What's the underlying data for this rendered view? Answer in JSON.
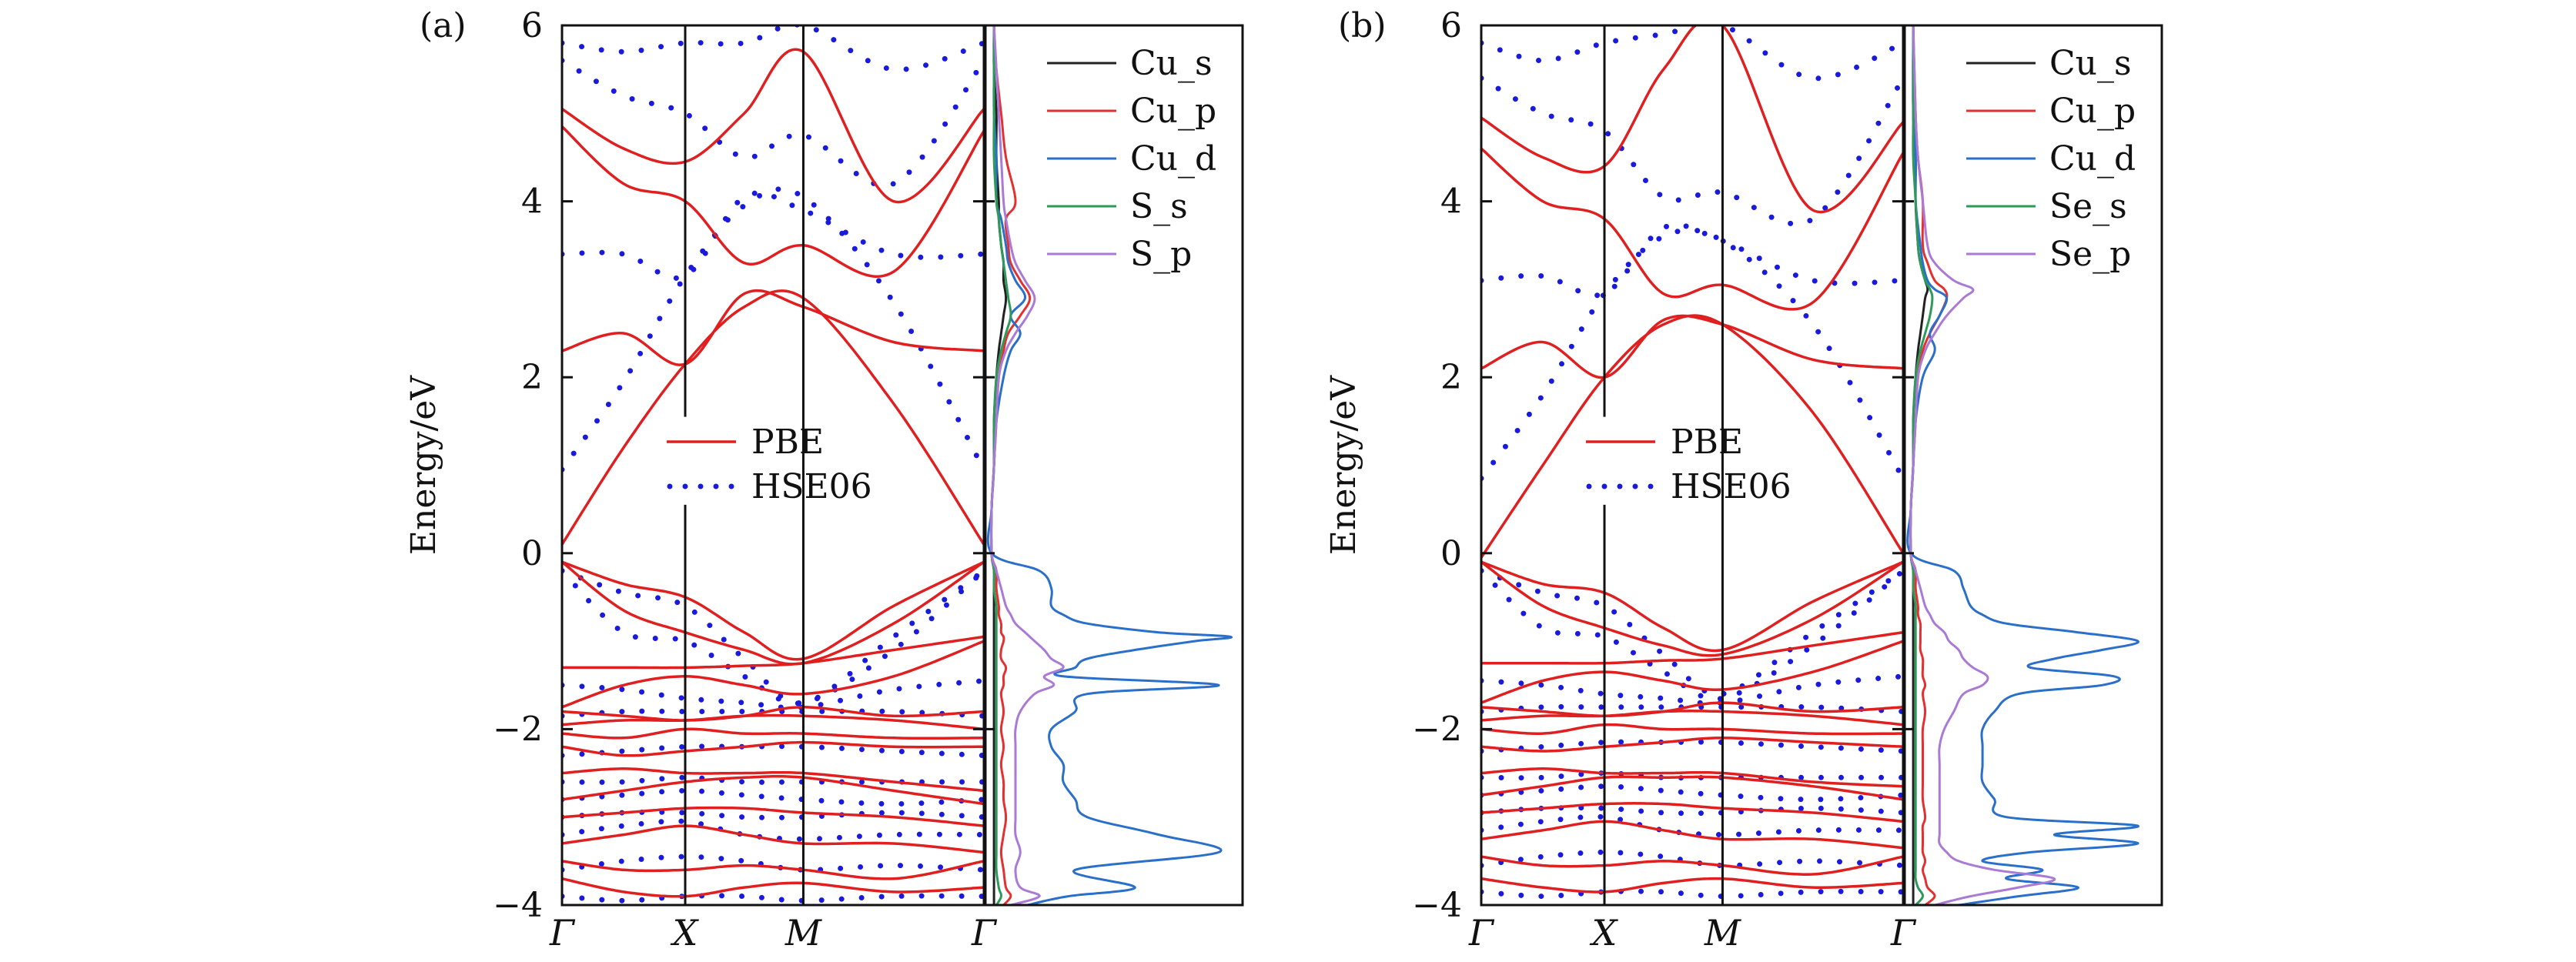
{
  "chart_data": [
    {
      "type": "line",
      "panel_label": "(a)",
      "ylabel": "Energy/eV",
      "ylim": [
        -4,
        6
      ],
      "yticks": [
        -4,
        -2,
        0,
        2,
        4,
        6
      ],
      "ytick_labels": [
        "−4",
        "−2",
        "0",
        "2",
        "4",
        "6"
      ],
      "kpoints": [
        "Γ",
        "X",
        "M",
        "Γ"
      ],
      "band_legend": [
        "PBE",
        "HSE06"
      ],
      "pdos_legend": [
        "Cu_s",
        "Cu_p",
        "Cu_d",
        "S_s",
        "S_p"
      ],
      "colors": {
        "PBE": "#e02020",
        "HSE06": "#1a1adc",
        "Cu_s": "#222222",
        "Cu_p": "#e33030",
        "Cu_d": "#2a6fc9",
        "S_s": "#2e9a5a",
        "S_p": "#a97ad6"
      },
      "pbe_bands": [
        [
          0.1,
          1.2,
          2.15,
          2.8,
          2.9,
          1.7,
          0.1
        ],
        [
          2.3,
          2.5,
          2.15,
          2.95,
          2.8,
          2.4,
          2.3
        ],
        [
          4.85,
          4.2,
          4.0,
          3.3,
          3.5,
          3.2,
          4.8
        ],
        [
          5.05,
          4.6,
          4.45,
          5.0,
          5.7,
          4.0,
          5.05
        ],
        [
          -0.1,
          -0.35,
          -0.5,
          -0.9,
          -1.2,
          -0.6,
          -0.1
        ],
        [
          -0.1,
          -0.65,
          -0.9,
          -1.1,
          -1.25,
          -0.8,
          -0.1
        ],
        [
          -1.3,
          -1.3,
          -1.3,
          -1.28,
          -1.25,
          -1.1,
          -0.95
        ],
        [
          -1.75,
          -1.5,
          -1.4,
          -1.5,
          -1.6,
          -1.4,
          -1.0
        ],
        [
          -1.8,
          -1.85,
          -1.9,
          -1.85,
          -1.75,
          -1.85,
          -1.8
        ],
        [
          -1.95,
          -1.9,
          -1.9,
          -1.85,
          -1.85,
          -1.9,
          -2.0
        ],
        [
          -2.05,
          -2.1,
          -2.0,
          -2.05,
          -2.05,
          -2.1,
          -2.1
        ],
        [
          -2.2,
          -2.3,
          -2.25,
          -2.2,
          -2.15,
          -2.2,
          -2.2
        ],
        [
          -2.5,
          -2.45,
          -2.5,
          -2.5,
          -2.5,
          -2.6,
          -2.7
        ],
        [
          -2.8,
          -2.7,
          -2.6,
          -2.55,
          -2.55,
          -2.7,
          -2.85
        ],
        [
          -3.0,
          -2.95,
          -2.9,
          -2.9,
          -2.95,
          -3.0,
          -3.1
        ],
        [
          -3.3,
          -3.2,
          -3.1,
          -3.2,
          -3.3,
          -3.3,
          -3.4
        ],
        [
          -3.5,
          -3.6,
          -3.6,
          -3.55,
          -3.6,
          -3.7,
          -3.5
        ],
        [
          -3.7,
          -3.85,
          -3.9,
          -3.8,
          -3.75,
          -3.85,
          -3.8
        ]
      ],
      "hse_bands": [
        [
          0.95,
          1.95,
          3.15,
          3.95,
          4.05,
          2.85,
          0.95
        ],
        [
          3.4,
          3.4,
          3.15,
          4.05,
          3.9,
          3.4,
          3.4
        ],
        [
          5.6,
          5.2,
          5.0,
          4.5,
          4.75,
          4.2,
          5.6
        ],
        [
          5.8,
          5.7,
          5.8,
          5.8,
          6.0,
          5.5,
          5.8
        ],
        [
          -0.2,
          -0.45,
          -0.6,
          -1.2,
          -1.7,
          -0.95,
          -0.2
        ],
        [
          -0.2,
          -0.9,
          -1.0,
          -1.4,
          -1.7,
          -1.1,
          -0.2
        ],
        [
          -1.5,
          -1.55,
          -1.65,
          -1.7,
          -1.75,
          -1.55,
          -1.45
        ],
        [
          -1.85,
          -1.8,
          -1.8,
          -1.8,
          -1.8,
          -1.8,
          -1.85
        ],
        [
          -2.3,
          -2.25,
          -2.2,
          -2.2,
          -2.2,
          -2.25,
          -2.3
        ],
        [
          -2.6,
          -2.6,
          -2.55,
          -2.6,
          -2.6,
          -2.6,
          -2.6
        ],
        [
          -2.8,
          -2.75,
          -2.7,
          -2.75,
          -2.8,
          -2.85,
          -2.8
        ],
        [
          -3.0,
          -2.95,
          -2.95,
          -3.0,
          -3.0,
          -2.95,
          -3.0
        ],
        [
          -3.2,
          -3.1,
          -3.05,
          -3.2,
          -3.25,
          -3.2,
          -3.2
        ],
        [
          -3.6,
          -3.5,
          -3.45,
          -3.5,
          -3.6,
          -3.55,
          -3.6
        ],
        [
          -3.9,
          -3.95,
          -3.9,
          -3.9,
          -3.95,
          -3.9,
          -3.9
        ]
      ],
      "pdos_energy": [
        -4.0,
        -3.9,
        -3.8,
        -3.6,
        -3.4,
        -3.2,
        -3.0,
        -2.8,
        -2.6,
        -2.4,
        -2.2,
        -2.0,
        -1.8,
        -1.6,
        -1.5,
        -1.4,
        -1.3,
        -1.2,
        -1.1,
        -1.0,
        -0.95,
        -0.9,
        -0.8,
        -0.7,
        -0.6,
        -0.4,
        -0.2,
        0.0,
        0.5,
        1.0,
        1.5,
        2.0,
        2.3,
        2.5,
        2.7,
        2.9,
        3.1,
        3.3,
        3.5,
        3.8,
        4.0,
        4.5,
        5.0,
        5.5,
        6.0
      ],
      "pdos": {
        "Cu_s": [
          0.01,
          0.01,
          0.01,
          0.01,
          0.01,
          0.01,
          0.01,
          0.01,
          0.01,
          0.01,
          0.01,
          0.01,
          0.01,
          0.01,
          0.01,
          0.01,
          0.01,
          0.01,
          0.01,
          0.01,
          0.01,
          0.01,
          0.01,
          0.01,
          0.01,
          0.01,
          0.01,
          0.0,
          0.0,
          0.01,
          0.01,
          0.02,
          0.03,
          0.04,
          0.05,
          0.06,
          0.05,
          0.05,
          0.04,
          0.03,
          0.03,
          0.02,
          0.02,
          0.01,
          0.01
        ],
        "Cu_p": [
          0.05,
          0.08,
          0.06,
          0.05,
          0.04,
          0.05,
          0.06,
          0.05,
          0.05,
          0.04,
          0.05,
          0.04,
          0.05,
          0.04,
          0.05,
          0.05,
          0.06,
          0.04,
          0.04,
          0.05,
          0.05,
          0.04,
          0.04,
          0.03,
          0.03,
          0.02,
          0.02,
          0.0,
          0.0,
          0.01,
          0.02,
          0.03,
          0.05,
          0.07,
          0.12,
          0.16,
          0.12,
          0.08,
          0.07,
          0.06,
          0.1,
          0.06,
          0.04,
          0.02,
          0.01
        ],
        "Cu_d": [
          0.15,
          0.32,
          0.6,
          0.35,
          0.95,
          0.7,
          0.4,
          0.35,
          0.3,
          0.3,
          0.25,
          0.25,
          0.35,
          0.4,
          0.95,
          0.3,
          0.35,
          0.4,
          0.6,
          0.85,
          1.0,
          0.7,
          0.4,
          0.3,
          0.25,
          0.25,
          0.2,
          0.0,
          0.0,
          0.01,
          0.02,
          0.05,
          0.08,
          0.12,
          0.08,
          0.14,
          0.1,
          0.07,
          0.06,
          0.04,
          0.02,
          0.02,
          0.01,
          0.01,
          0.01
        ],
        "S_s": [
          0.02,
          0.04,
          0.03,
          0.02,
          0.02,
          0.02,
          0.02,
          0.02,
          0.02,
          0.02,
          0.02,
          0.02,
          0.02,
          0.02,
          0.02,
          0.02,
          0.02,
          0.02,
          0.02,
          0.02,
          0.02,
          0.02,
          0.02,
          0.02,
          0.02,
          0.01,
          0.01,
          0.0,
          0.0,
          0.01,
          0.01,
          0.02,
          0.04,
          0.06,
          0.08,
          0.07,
          0.06,
          0.05,
          0.04,
          0.03,
          0.02,
          0.01,
          0.01,
          0.01,
          0.01
        ],
        "S_p": [
          0.08,
          0.2,
          0.12,
          0.1,
          0.12,
          0.1,
          0.1,
          0.1,
          0.1,
          0.1,
          0.1,
          0.1,
          0.12,
          0.18,
          0.26,
          0.22,
          0.3,
          0.25,
          0.22,
          0.18,
          0.16,
          0.14,
          0.1,
          0.08,
          0.06,
          0.04,
          0.02,
          0.0,
          0.0,
          0.01,
          0.02,
          0.03,
          0.06,
          0.1,
          0.15,
          0.18,
          0.14,
          0.1,
          0.08,
          0.06,
          0.05,
          0.04,
          0.03,
          0.02,
          0.01
        ]
      }
    },
    {
      "type": "line",
      "panel_label": "(b)",
      "ylabel": "Energy/eV",
      "ylim": [
        -4,
        6
      ],
      "yticks": [
        -4,
        -2,
        0,
        2,
        4,
        6
      ],
      "ytick_labels": [
        "−4",
        "−2",
        "0",
        "2",
        "4",
        "6"
      ],
      "kpoints": [
        "Γ",
        "X",
        "M",
        "Γ"
      ],
      "band_legend": [
        "PBE",
        "HSE06"
      ],
      "pdos_legend": [
        "Cu_s",
        "Cu_p",
        "Cu_d",
        "Se_s",
        "Se_p"
      ],
      "colors": {
        "PBE": "#e02020",
        "HSE06": "#1a1adc",
        "Cu_s": "#222222",
        "Cu_p": "#e33030",
        "Cu_d": "#2a6fc9",
        "Se_s": "#2e9a5a",
        "Se_p": "#a97ad6"
      },
      "pbe_bands": [
        [
          -0.05,
          1.0,
          2.0,
          2.6,
          2.6,
          1.6,
          0.0
        ],
        [
          2.1,
          2.4,
          2.0,
          2.65,
          2.6,
          2.2,
          2.1
        ],
        [
          4.6,
          4.0,
          3.8,
          2.95,
          3.05,
          2.85,
          4.55
        ],
        [
          4.95,
          4.5,
          4.4,
          5.5,
          6.0,
          3.9,
          4.9
        ],
        [
          -0.1,
          -0.35,
          -0.45,
          -0.85,
          -1.1,
          -0.55,
          -0.1
        ],
        [
          -0.1,
          -0.6,
          -0.85,
          -1.05,
          -1.15,
          -0.75,
          -0.1
        ],
        [
          -1.25,
          -1.25,
          -1.25,
          -1.22,
          -1.2,
          -1.05,
          -0.9
        ],
        [
          -1.7,
          -1.45,
          -1.35,
          -1.45,
          -1.55,
          -1.35,
          -1.0
        ],
        [
          -1.75,
          -1.8,
          -1.85,
          -1.8,
          -1.7,
          -1.8,
          -1.75
        ],
        [
          -1.9,
          -1.85,
          -1.85,
          -1.8,
          -1.8,
          -1.85,
          -1.95
        ],
        [
          -2.0,
          -2.05,
          -1.95,
          -2.0,
          -2.0,
          -2.05,
          -2.05
        ],
        [
          -2.2,
          -2.25,
          -2.2,
          -2.15,
          -2.1,
          -2.15,
          -2.2
        ],
        [
          -2.5,
          -2.45,
          -2.5,
          -2.5,
          -2.5,
          -2.6,
          -2.65
        ],
        [
          -2.75,
          -2.65,
          -2.55,
          -2.55,
          -2.55,
          -2.65,
          -2.8
        ],
        [
          -2.95,
          -2.9,
          -2.85,
          -2.85,
          -2.9,
          -2.95,
          -3.05
        ],
        [
          -3.25,
          -3.15,
          -3.05,
          -3.15,
          -3.25,
          -3.25,
          -3.35
        ],
        [
          -3.45,
          -3.55,
          -3.55,
          -3.5,
          -3.55,
          -3.65,
          -3.45
        ],
        [
          -3.7,
          -3.8,
          -3.85,
          -3.75,
          -3.7,
          -3.8,
          -3.75
        ]
      ],
      "hse_bands": [
        [
          0.85,
          1.8,
          2.95,
          3.6,
          3.55,
          2.6,
          0.85
        ],
        [
          3.1,
          3.15,
          2.95,
          3.7,
          3.55,
          3.1,
          3.1
        ],
        [
          5.4,
          5.0,
          4.8,
          4.05,
          4.1,
          3.8,
          5.4
        ],
        [
          5.8,
          5.6,
          5.8,
          5.9,
          6.0,
          5.4,
          5.8
        ],
        [
          -0.2,
          -0.45,
          -0.6,
          -1.15,
          -1.6,
          -0.9,
          -0.2
        ],
        [
          -0.2,
          -0.85,
          -0.95,
          -1.35,
          -1.65,
          -1.05,
          -0.2
        ],
        [
          -1.45,
          -1.5,
          -1.6,
          -1.65,
          -1.7,
          -1.5,
          -1.4
        ],
        [
          -1.8,
          -1.75,
          -1.75,
          -1.75,
          -1.75,
          -1.75,
          -1.8
        ],
        [
          -2.25,
          -2.2,
          -2.15,
          -2.15,
          -2.15,
          -2.2,
          -2.25
        ],
        [
          -2.55,
          -2.55,
          -2.5,
          -2.55,
          -2.55,
          -2.55,
          -2.55
        ],
        [
          -2.75,
          -2.7,
          -2.65,
          -2.7,
          -2.75,
          -2.8,
          -2.75
        ],
        [
          -2.95,
          -2.9,
          -2.9,
          -2.95,
          -2.95,
          -2.9,
          -2.95
        ],
        [
          -3.15,
          -3.05,
          -3.0,
          -3.15,
          -3.2,
          -3.15,
          -3.15
        ],
        [
          -3.55,
          -3.45,
          -3.4,
          -3.45,
          -3.55,
          -3.5,
          -3.55
        ],
        [
          -3.85,
          -3.9,
          -3.85,
          -3.85,
          -3.9,
          -3.85,
          -3.85
        ]
      ],
      "pdos_energy": [
        -4.0,
        -3.9,
        -3.8,
        -3.7,
        -3.6,
        -3.5,
        -3.4,
        -3.3,
        -3.2,
        -3.1,
        -3.0,
        -2.8,
        -2.6,
        -2.4,
        -2.2,
        -2.0,
        -1.8,
        -1.6,
        -1.5,
        -1.4,
        -1.3,
        -1.2,
        -1.1,
        -1.0,
        -0.9,
        -0.8,
        -0.7,
        -0.6,
        -0.4,
        -0.2,
        0.0,
        0.5,
        1.0,
        1.5,
        2.0,
        2.3,
        2.5,
        2.7,
        2.9,
        3.0,
        3.1,
        3.3,
        3.5,
        4.0,
        4.5,
        5.0,
        6.0
      ],
      "pdos": {
        "Cu_s": [
          0.01,
          0.01,
          0.01,
          0.01,
          0.01,
          0.01,
          0.01,
          0.01,
          0.01,
          0.01,
          0.01,
          0.01,
          0.01,
          0.01,
          0.01,
          0.01,
          0.01,
          0.01,
          0.01,
          0.01,
          0.01,
          0.01,
          0.01,
          0.01,
          0.01,
          0.01,
          0.01,
          0.01,
          0.01,
          0.01,
          0.0,
          0.0,
          0.01,
          0.01,
          0.02,
          0.03,
          0.04,
          0.05,
          0.06,
          0.07,
          0.06,
          0.04,
          0.03,
          0.02,
          0.02,
          0.01,
          0.01
        ],
        "Cu_p": [
          0.06,
          0.1,
          0.07,
          0.06,
          0.05,
          0.06,
          0.05,
          0.05,
          0.05,
          0.05,
          0.06,
          0.05,
          0.05,
          0.05,
          0.05,
          0.05,
          0.06,
          0.05,
          0.06,
          0.05,
          0.05,
          0.05,
          0.04,
          0.04,
          0.04,
          0.04,
          0.03,
          0.03,
          0.02,
          0.02,
          0.0,
          0.0,
          0.01,
          0.02,
          0.03,
          0.05,
          0.08,
          0.12,
          0.15,
          0.14,
          0.1,
          0.07,
          0.05,
          0.05,
          0.03,
          0.02,
          0.01
        ],
        "Cu_d": [
          0.2,
          0.45,
          0.7,
          0.4,
          0.55,
          0.3,
          0.5,
          0.95,
          0.6,
          0.95,
          0.4,
          0.35,
          0.3,
          0.3,
          0.3,
          0.3,
          0.35,
          0.45,
          0.8,
          0.85,
          0.5,
          0.6,
          0.8,
          0.95,
          0.7,
          0.4,
          0.3,
          0.25,
          0.22,
          0.18,
          0.0,
          0.0,
          0.01,
          0.02,
          0.05,
          0.1,
          0.08,
          0.12,
          0.15,
          0.1,
          0.07,
          0.05,
          0.04,
          0.02,
          0.02,
          0.01,
          0.01
        ],
        "Se_s": [
          0.02,
          0.05,
          0.03,
          0.02,
          0.02,
          0.02,
          0.02,
          0.02,
          0.02,
          0.02,
          0.02,
          0.02,
          0.02,
          0.02,
          0.02,
          0.02,
          0.02,
          0.02,
          0.02,
          0.02,
          0.02,
          0.02,
          0.02,
          0.02,
          0.02,
          0.02,
          0.02,
          0.02,
          0.01,
          0.01,
          0.0,
          0.0,
          0.01,
          0.01,
          0.02,
          0.04,
          0.06,
          0.08,
          0.09,
          0.08,
          0.06,
          0.04,
          0.03,
          0.02,
          0.01,
          0.01,
          0.01
        ],
        "Se_p": [
          0.1,
          0.25,
          0.45,
          0.6,
          0.35,
          0.2,
          0.15,
          0.12,
          0.12,
          0.12,
          0.12,
          0.12,
          0.12,
          0.12,
          0.12,
          0.14,
          0.18,
          0.22,
          0.3,
          0.32,
          0.26,
          0.22,
          0.2,
          0.16,
          0.14,
          0.1,
          0.08,
          0.06,
          0.04,
          0.02,
          0.0,
          0.0,
          0.01,
          0.02,
          0.03,
          0.06,
          0.1,
          0.15,
          0.22,
          0.26,
          0.18,
          0.1,
          0.07,
          0.05,
          0.03,
          0.02,
          0.01
        ]
      }
    }
  ]
}
